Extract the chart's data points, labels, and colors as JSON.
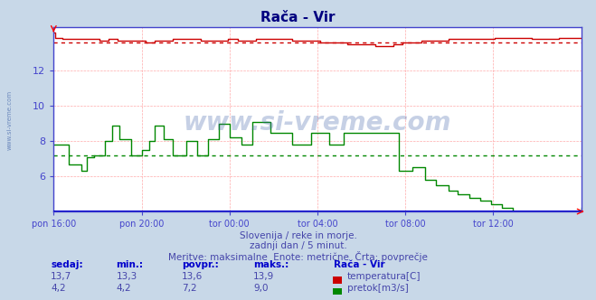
{
  "title": "Rača - Vir",
  "title_color": "#000080",
  "bg_color": "#c8d8e8",
  "plot_bg_color": "#ffffff",
  "x_labels": [
    "pon 16:00",
    "pon 20:00",
    "tor 00:00",
    "tor 04:00",
    "tor 08:00",
    "tor 12:00"
  ],
  "x_ticks_norm": [
    0.0,
    0.1667,
    0.3333,
    0.5,
    0.6667,
    0.8333
  ],
  "total_points": 288,
  "ylim": [
    4.0,
    14.5
  ],
  "yticks": [
    6,
    8,
    10,
    12
  ],
  "grid_color": "#ffaaaa",
  "temp_color": "#cc0000",
  "pretok_color": "#008800",
  "temp_avg": 13.6,
  "pretok_avg": 7.2,
  "axis_color": "#4444cc",
  "tick_color": "#4444cc",
  "subtitle1": "Slovenija / reke in morje.",
  "subtitle2": "zadnji dan / 5 minut.",
  "subtitle3": "Meritve: maksimalne  Enote: metrične  Črta: povprečje",
  "subtitle_color": "#4444aa",
  "table_header_color": "#0000cc",
  "table_val_color": "#4444aa",
  "station_label": "Rača - Vir",
  "legend_labels": [
    "temperatura[C]",
    "pretok[m3/s]"
  ],
  "legend_colors": [
    "#cc0000",
    "#008800"
  ],
  "watermark": "www.si-vreme.com",
  "watermark_color": "#4466aa",
  "watermark_alpha": 0.3,
  "left_label": "www.si-vreme.com",
  "left_label_color": "#4466aa"
}
